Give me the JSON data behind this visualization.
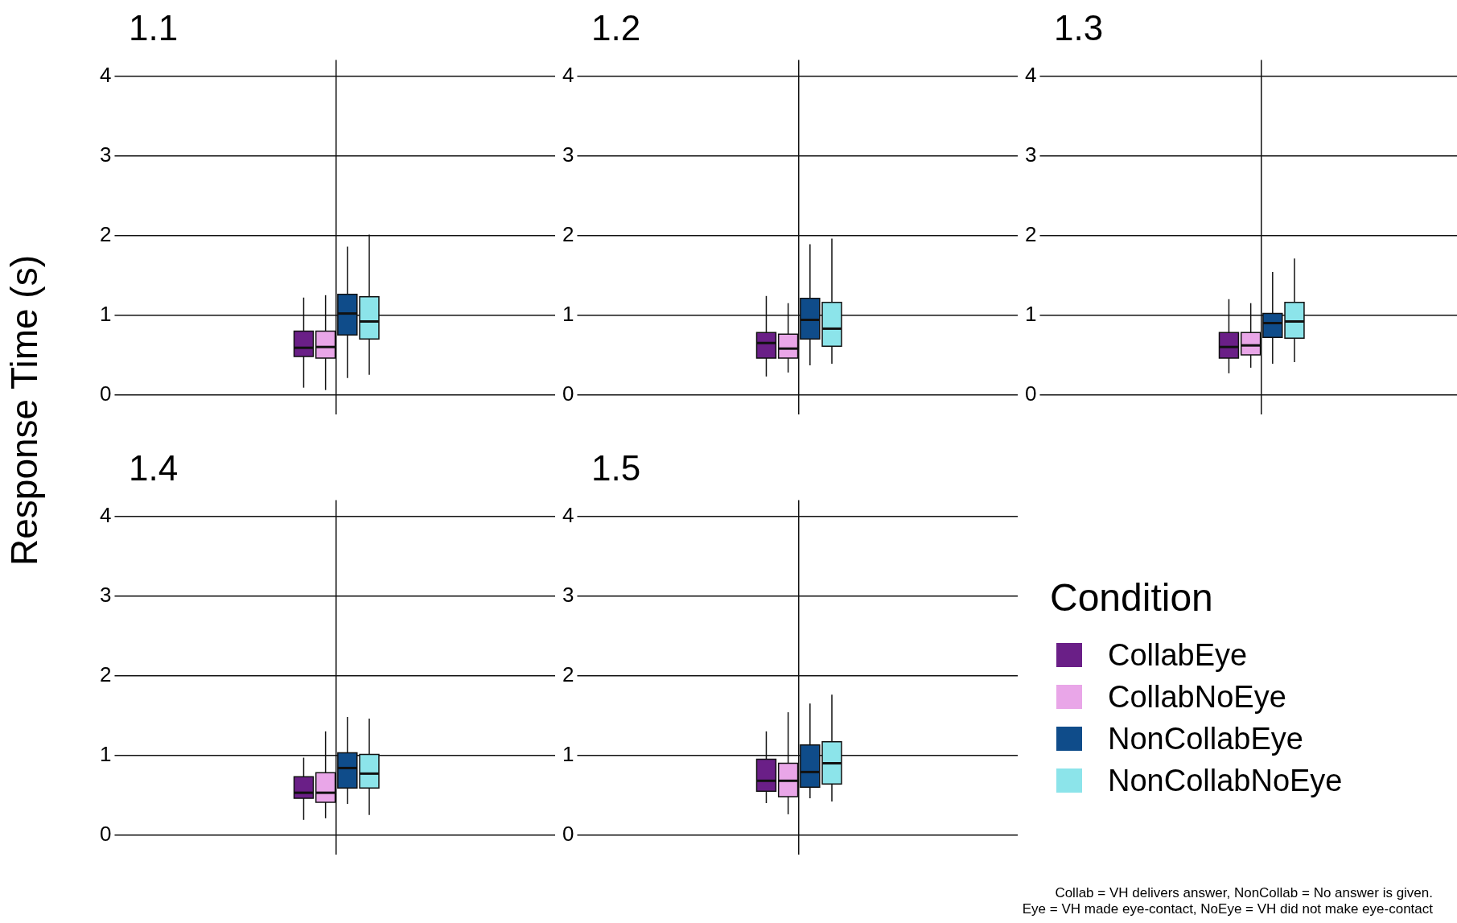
{
  "chart_data": [
    {
      "type": "box",
      "title": "1.1",
      "ylabel": "Response Time (s)",
      "categories": [
        null
      ],
      "ylim": [
        -0.25,
        4.2
      ],
      "yticks": [
        0,
        1,
        2,
        3,
        4
      ],
      "grid": true,
      "tick_labels": "y",
      "series": [
        {
          "color": "#6a1f87",
          "boxes": [
            {
              "low": 0.09,
              "q1": 0.48,
              "median": 0.59,
              "q3": 0.8,
              "high": 1.22
            }
          ]
        },
        {
          "color": "#e9a6e8",
          "boxes": [
            {
              "low": 0.06,
              "q1": 0.46,
              "median": 0.6,
              "q3": 0.8,
              "high": 1.25
            }
          ]
        },
        {
          "color": "#0f4c8a",
          "boxes": [
            {
              "low": 0.21,
              "q1": 0.75,
              "median": 1.02,
              "q3": 1.26,
              "high": 1.86
            }
          ]
        },
        {
          "color": "#8ce4ea",
          "boxes": [
            {
              "low": 0.25,
              "q1": 0.7,
              "median": 0.92,
              "q3": 1.23,
              "high": 2.01
            }
          ]
        }
      ]
    },
    {
      "type": "box",
      "title": "1.2",
      "categories": [
        null
      ],
      "ylim": [
        -0.25,
        4.2
      ],
      "yticks": [
        0,
        1,
        2,
        3,
        4
      ],
      "grid": true,
      "tick_labels": "y",
      "series": [
        {
          "color": "#6a1f87",
          "boxes": [
            {
              "low": 0.23,
              "q1": 0.46,
              "median": 0.65,
              "q3": 0.78,
              "high": 1.24
            }
          ]
        },
        {
          "color": "#e9a6e8",
          "boxes": [
            {
              "low": 0.28,
              "q1": 0.46,
              "median": 0.58,
              "q3": 0.76,
              "high": 1.15
            }
          ]
        },
        {
          "color": "#0f4c8a",
          "boxes": [
            {
              "low": 0.37,
              "q1": 0.7,
              "median": 0.94,
              "q3": 1.21,
              "high": 1.89
            }
          ]
        },
        {
          "color": "#8ce4ea",
          "boxes": [
            {
              "low": 0.39,
              "q1": 0.61,
              "median": 0.83,
              "q3": 1.16,
              "high": 1.96
            }
          ]
        }
      ]
    },
    {
      "type": "box",
      "title": "1.3",
      "categories": [
        null
      ],
      "ylim": [
        -0.25,
        4.2
      ],
      "yticks": [
        0,
        1,
        2,
        3,
        4
      ],
      "grid": true,
      "tick_labels": "y",
      "series": [
        {
          "color": "#6a1f87",
          "boxes": [
            {
              "low": 0.27,
              "q1": 0.46,
              "median": 0.6,
              "q3": 0.78,
              "high": 1.2
            }
          ]
        },
        {
          "color": "#e9a6e8",
          "boxes": [
            {
              "low": 0.34,
              "q1": 0.5,
              "median": 0.62,
              "q3": 0.78,
              "high": 1.15
            }
          ]
        },
        {
          "color": "#0f4c8a",
          "boxes": [
            {
              "low": 0.39,
              "q1": 0.72,
              "median": 0.9,
              "q3": 1.02,
              "high": 1.54
            }
          ]
        },
        {
          "color": "#8ce4ea",
          "boxes": [
            {
              "low": 0.41,
              "q1": 0.71,
              "median": 0.92,
              "q3": 1.16,
              "high": 1.71
            }
          ]
        }
      ]
    },
    {
      "type": "box",
      "title": "1.4",
      "categories": [
        null
      ],
      "ylim": [
        -0.25,
        4.2
      ],
      "yticks": [
        0,
        1,
        2,
        3,
        4
      ],
      "grid": true,
      "tick_labels": "y",
      "series": [
        {
          "color": "#6a1f87",
          "boxes": [
            {
              "low": 0.19,
              "q1": 0.46,
              "median": 0.53,
              "q3": 0.73,
              "high": 0.97
            }
          ]
        },
        {
          "color": "#e9a6e8",
          "boxes": [
            {
              "low": 0.21,
              "q1": 0.41,
              "median": 0.53,
              "q3": 0.78,
              "high": 1.3
            }
          ]
        },
        {
          "color": "#0f4c8a",
          "boxes": [
            {
              "low": 0.39,
              "q1": 0.59,
              "median": 0.84,
              "q3": 1.03,
              "high": 1.48
            }
          ]
        },
        {
          "color": "#8ce4ea",
          "boxes": [
            {
              "low": 0.25,
              "q1": 0.59,
              "median": 0.77,
              "q3": 1.01,
              "high": 1.46
            }
          ]
        }
      ]
    },
    {
      "type": "box",
      "title": "1.5",
      "categories": [
        null
      ],
      "ylim": [
        -0.25,
        4.2
      ],
      "yticks": [
        0,
        1,
        2,
        3,
        4
      ],
      "grid": true,
      "tick_labels": "y",
      "legend": "right",
      "legend_title": "Condition",
      "annotations": [
        "Collab = VH delivers answer, NonCollab = No answer is given.",
        "Eye = VH made eye-contact, NoEye = VH did not make eye-contact"
      ],
      "series": [
        {
          "name": "CollabEye",
          "color": "#6a1f87",
          "boxes": [
            {
              "low": 0.4,
              "q1": 0.55,
              "median": 0.68,
              "q3": 0.95,
              "high": 1.3
            }
          ]
        },
        {
          "name": "CollabNoEye",
          "color": "#e9a6e8",
          "boxes": [
            {
              "low": 0.26,
              "q1": 0.48,
              "median": 0.68,
              "q3": 0.9,
              "high": 1.54
            }
          ]
        },
        {
          "name": "NonCollabEye",
          "color": "#0f4c8a",
          "boxes": [
            {
              "low": 0.46,
              "q1": 0.6,
              "median": 0.79,
              "q3": 1.13,
              "high": 1.65
            }
          ]
        },
        {
          "name": "NonCollabNoEye",
          "color": "#8ce4ea",
          "boxes": [
            {
              "low": 0.42,
              "q1": 0.64,
              "median": 0.9,
              "q3": 1.17,
              "high": 1.76
            }
          ]
        }
      ]
    }
  ]
}
